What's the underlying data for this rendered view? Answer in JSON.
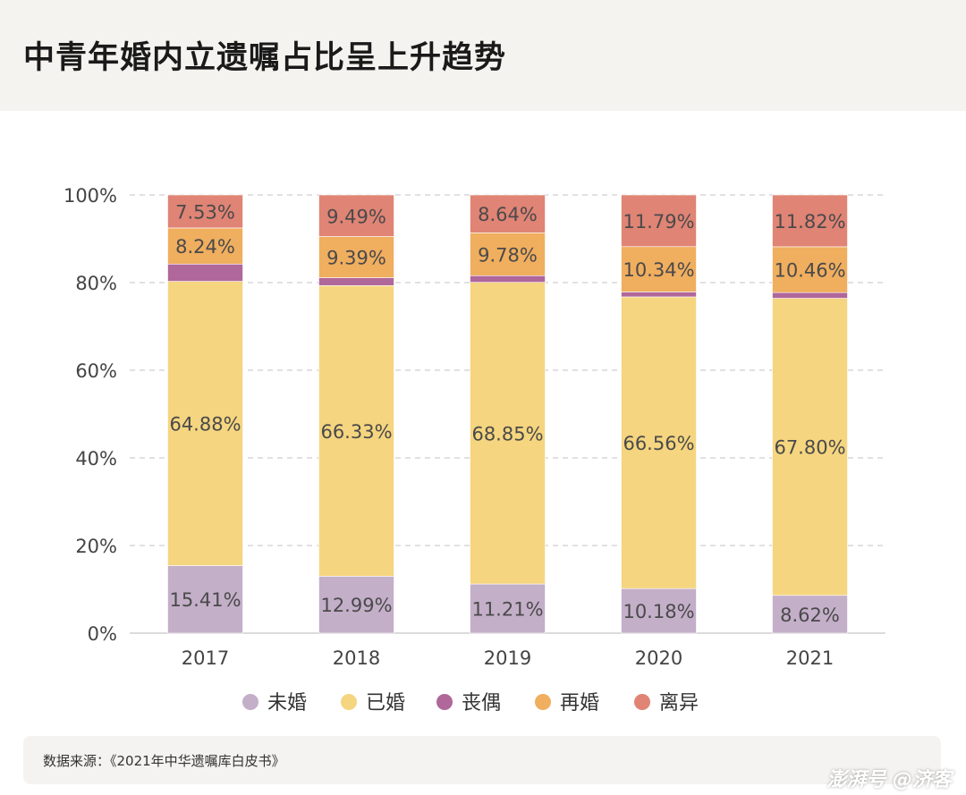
{
  "header": {
    "title": "中青年婚内立遗嘱占比呈上升趋势"
  },
  "chart_data": {
    "type": "bar",
    "stacked": true,
    "categories": [
      "2017",
      "2018",
      "2019",
      "2020",
      "2021"
    ],
    "ylim": [
      0,
      100
    ],
    "yticks": [
      "0%",
      "20%",
      "40%",
      "60%",
      "80%",
      "100%"
    ],
    "grid": "horizontal dashed",
    "legend_position": "bottom",
    "series": [
      {
        "name": "未婚",
        "color": "#c4afc9",
        "values": [
          15.41,
          12.99,
          11.21,
          10.18,
          8.62
        ],
        "labels": [
          "15.41%",
          "12.99%",
          "11.21%",
          "10.18%",
          "8.62%"
        ]
      },
      {
        "name": "已婚",
        "color": "#f5d57f",
        "values": [
          64.88,
          66.33,
          68.85,
          66.56,
          67.8
        ],
        "labels": [
          "64.88%",
          "66.33%",
          "68.85%",
          "66.56%",
          "67.80%"
        ]
      },
      {
        "name": "丧偶",
        "color": "#b0679a",
        "values": [
          3.94,
          1.8,
          1.52,
          1.13,
          1.3
        ],
        "labels": [
          "",
          "",
          "",
          "",
          ""
        ]
      },
      {
        "name": "再婚",
        "color": "#f0ae5f",
        "values": [
          8.24,
          9.39,
          9.78,
          10.34,
          10.46
        ],
        "labels": [
          "8.24%",
          "9.39%",
          "9.78%",
          "10.34%",
          "10.46%"
        ]
      },
      {
        "name": "离异",
        "color": "#e08475",
        "values": [
          7.53,
          9.49,
          8.64,
          11.79,
          11.82
        ],
        "labels": [
          "7.53%",
          "9.49%",
          "8.64%",
          "11.79%",
          "11.82%"
        ]
      }
    ]
  },
  "footer": {
    "source": "数据来源：《2021年中华遗嘱库白皮书》",
    "watermark": "澎湃号 @济客"
  }
}
